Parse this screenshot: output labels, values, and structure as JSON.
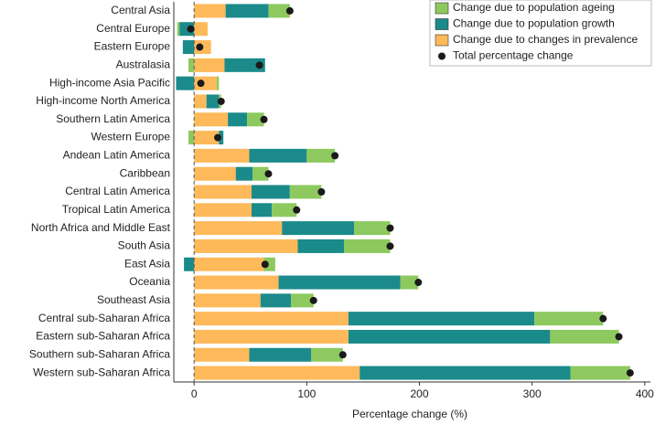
{
  "chart_data": {
    "type": "stacked-barh",
    "xlabel": "Percentage change (%)",
    "categories": [
      "Central Asia",
      "Central Europe",
      "Eastern Europe",
      "Australasia",
      "High-income Asia Pacific",
      "High-income North America",
      "Southern Latin America",
      "Western Europe",
      "Andean Latin America",
      "Caribbean",
      "Central Latin America",
      "Tropical Latin America",
      "North Africa and Middle East",
      "South Asia",
      "East Asia",
      "Oceania",
      "Southeast Asia",
      "Central sub-Saharan Africa",
      "Eastern sub-Saharan Africa",
      "Southern sub-Saharan Africa",
      "Western sub-Saharan Africa"
    ],
    "series": [
      {
        "name": "Change due to population ageing",
        "color": "#8dc95f",
        "values": [
          19,
          -2,
          0,
          -5,
          2,
          2,
          15,
          -5,
          25,
          14,
          28,
          22,
          32,
          41,
          10,
          16,
          20,
          61,
          61,
          28,
          53
        ]
      },
      {
        "name": "Change due to population growth",
        "color": "#1b8a8a",
        "values": [
          38,
          -13,
          -10,
          36,
          -16,
          11,
          17,
          4,
          51,
          15,
          34,
          18,
          64,
          41,
          -9,
          108,
          27,
          165,
          179,
          55,
          187
        ]
      },
      {
        "name": "Change due to changes in prevalence",
        "color": "#fdb95a",
        "values": [
          28,
          12,
          15,
          27,
          20,
          11,
          30,
          22,
          49,
          37,
          51,
          51,
          78,
          92,
          62,
          75,
          59,
          137,
          137,
          49,
          147
        ]
      }
    ],
    "totals": {
      "name": "Total percentage change",
      "color": "#1a1a1a",
      "values": [
        85,
        -3,
        5,
        58,
        6,
        24,
        62,
        21,
        125,
        66,
        113,
        91,
        174,
        174,
        63,
        199,
        106,
        363,
        377,
        132,
        387
      ]
    },
    "xlim": [
      -18,
      405
    ],
    "xticks": [
      0,
      100,
      200,
      300,
      400
    ],
    "zero_line": "dashed"
  }
}
